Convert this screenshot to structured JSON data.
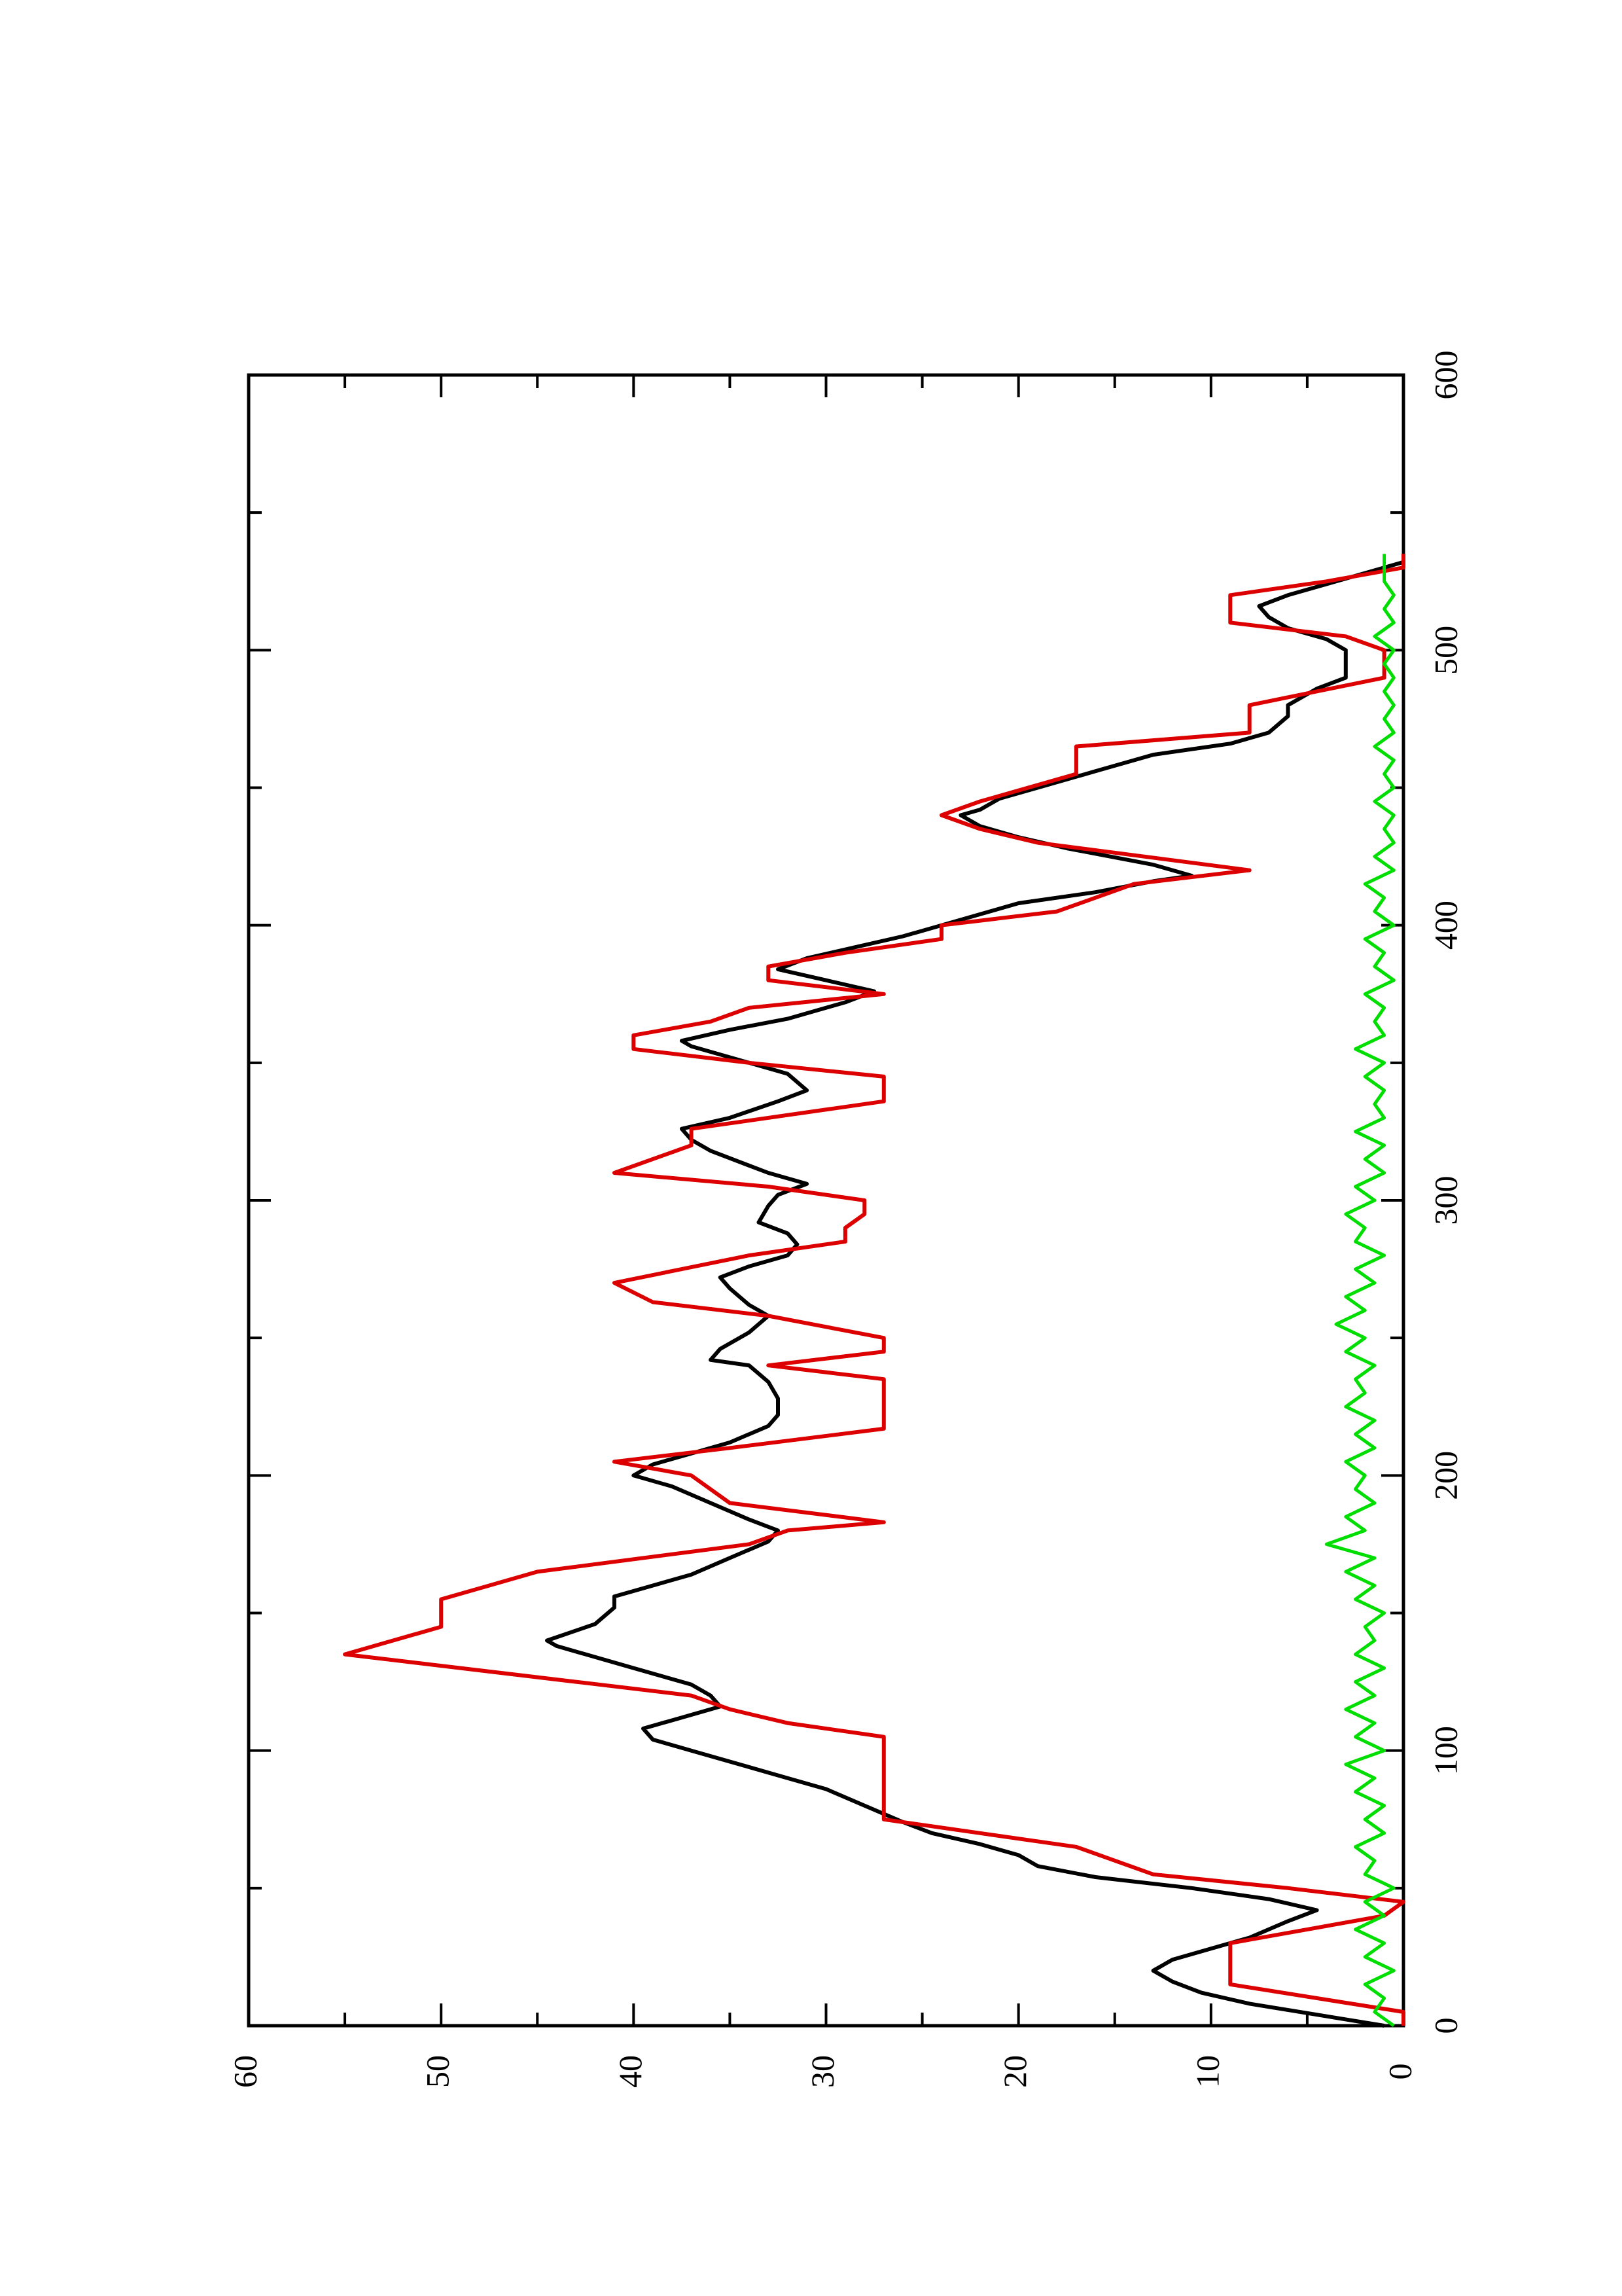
{
  "chart_data": {
    "type": "line",
    "title": "",
    "xlabel": "",
    "ylabel": "",
    "orientation": "rotated-90-ccw",
    "xlim": [
      0,
      600
    ],
    "ylim": [
      0,
      60
    ],
    "x_ticks": [
      0,
      100,
      200,
      300,
      400,
      500,
      600
    ],
    "y_ticks": [
      0,
      10,
      20,
      30,
      40,
      50,
      60
    ],
    "x_tick_labels": [
      "0",
      "100",
      "200",
      "300",
      "400",
      "500",
      "600"
    ],
    "y_tick_labels": [
      "0",
      "10",
      "20",
      "30",
      "40",
      "50",
      "60"
    ],
    "grid": false,
    "legend": "none",
    "series": [
      {
        "color": "#000000",
        "style": "smooth",
        "points": [
          [
            0,
            1
          ],
          [
            8,
            8
          ],
          [
            12,
            10.5
          ],
          [
            16,
            12
          ],
          [
            20,
            13
          ],
          [
            24,
            12
          ],
          [
            28,
            10
          ],
          [
            32,
            8
          ],
          [
            38,
            6
          ],
          [
            42,
            4.5
          ],
          [
            46,
            7
          ],
          [
            50,
            11
          ],
          [
            54,
            16
          ],
          [
            58,
            19
          ],
          [
            62,
            20
          ],
          [
            66,
            22
          ],
          [
            70,
            24.5
          ],
          [
            74,
            26
          ],
          [
            80,
            28
          ],
          [
            86,
            30
          ],
          [
            90,
            32
          ],
          [
            96,
            35
          ],
          [
            100,
            37
          ],
          [
            104,
            39
          ],
          [
            108,
            39.5
          ],
          [
            112,
            37.5
          ],
          [
            116,
            35.5
          ],
          [
            120,
            36
          ],
          [
            124,
            37
          ],
          [
            130,
            40
          ],
          [
            134,
            42
          ],
          [
            138,
            44
          ],
          [
            140,
            44.5
          ],
          [
            146,
            42
          ],
          [
            152,
            41
          ],
          [
            156,
            41
          ],
          [
            160,
            39
          ],
          [
            164,
            37
          ],
          [
            170,
            35
          ],
          [
            176,
            33
          ],
          [
            180,
            32.5
          ],
          [
            184,
            34
          ],
          [
            190,
            36
          ],
          [
            196,
            38
          ],
          [
            200,
            40
          ],
          [
            204,
            39
          ],
          [
            208,
            37
          ],
          [
            212,
            35
          ],
          [
            218,
            33
          ],
          [
            222,
            32.5
          ],
          [
            228,
            32.5
          ],
          [
            234,
            33
          ],
          [
            240,
            34
          ],
          [
            242,
            36
          ],
          [
            246,
            35.5
          ],
          [
            252,
            34
          ],
          [
            258,
            33
          ],
          [
            262,
            34
          ],
          [
            268,
            35
          ],
          [
            272,
            35.5
          ],
          [
            276,
            34
          ],
          [
            280,
            32
          ],
          [
            284,
            31.5
          ],
          [
            288,
            32
          ],
          [
            292,
            33.5
          ],
          [
            298,
            33
          ],
          [
            302,
            32.5
          ],
          [
            306,
            31
          ],
          [
            310,
            33
          ],
          [
            314,
            34.5
          ],
          [
            318,
            36
          ],
          [
            322,
            37
          ],
          [
            326,
            37.5
          ],
          [
            330,
            35
          ],
          [
            336,
            32.5
          ],
          [
            340,
            31
          ],
          [
            346,
            32
          ],
          [
            350,
            34
          ],
          [
            356,
            37
          ],
          [
            358,
            37.5
          ],
          [
            362,
            35
          ],
          [
            366,
            32
          ],
          [
            370,
            30
          ],
          [
            372,
            29
          ],
          [
            376,
            27.5
          ],
          [
            380,
            30
          ],
          [
            384,
            32.5
          ],
          [
            388,
            31
          ],
          [
            392,
            28.5
          ],
          [
            396,
            26
          ],
          [
            400,
            24
          ],
          [
            404,
            22
          ],
          [
            408,
            20
          ],
          [
            412,
            16
          ],
          [
            416,
            13
          ],
          [
            418,
            11
          ],
          [
            422,
            13
          ],
          [
            428,
            17.5
          ],
          [
            432,
            20
          ],
          [
            436,
            22
          ],
          [
            440,
            23
          ],
          [
            442,
            22
          ],
          [
            446,
            21
          ],
          [
            450,
            19
          ],
          [
            456,
            16
          ],
          [
            462,
            13
          ],
          [
            466,
            9
          ],
          [
            470,
            7
          ],
          [
            476,
            6
          ],
          [
            480,
            6
          ],
          [
            486,
            4.5
          ],
          [
            490,
            3
          ],
          [
            496,
            3
          ],
          [
            500,
            3
          ],
          [
            504,
            4
          ],
          [
            508,
            6
          ],
          [
            512,
            7
          ],
          [
            516,
            7.5
          ],
          [
            520,
            6
          ],
          [
            524,
            4
          ],
          [
            528,
            2
          ],
          [
            532,
            0
          ],
          [
            534,
            0
          ]
        ]
      },
      {
        "color": "#dd0000",
        "style": "step",
        "points": [
          [
            0,
            0
          ],
          [
            5,
            0
          ],
          [
            15,
            9
          ],
          [
            30,
            9
          ],
          [
            40,
            1
          ],
          [
            45,
            0
          ],
          [
            50,
            6
          ],
          [
            55,
            13
          ],
          [
            65,
            17
          ],
          [
            70,
            22
          ],
          [
            75,
            27
          ],
          [
            105,
            27
          ],
          [
            110,
            32
          ],
          [
            115,
            35
          ],
          [
            120,
            37
          ],
          [
            125,
            43
          ],
          [
            135,
            55
          ],
          [
            145,
            50
          ],
          [
            155,
            50
          ],
          [
            165,
            45
          ],
          [
            175,
            34
          ],
          [
            180,
            32
          ],
          [
            183,
            27
          ],
          [
            190,
            35
          ],
          [
            200,
            37
          ],
          [
            205,
            41
          ],
          [
            210,
            35
          ],
          [
            217,
            27
          ],
          [
            235,
            27
          ],
          [
            240,
            33
          ],
          [
            245,
            27
          ],
          [
            250,
            27
          ],
          [
            258,
            33
          ],
          [
            263,
            39
          ],
          [
            270,
            41
          ],
          [
            280,
            34
          ],
          [
            285,
            29
          ],
          [
            290,
            29
          ],
          [
            295,
            28
          ],
          [
            300,
            28
          ],
          [
            305,
            33
          ],
          [
            310,
            41
          ],
          [
            320,
            37
          ],
          [
            326,
            37
          ],
          [
            336,
            27
          ],
          [
            345,
            27
          ],
          [
            350,
            34
          ],
          [
            355,
            40
          ],
          [
            360,
            40
          ],
          [
            365,
            36
          ],
          [
            370,
            34
          ],
          [
            375,
            27
          ],
          [
            380,
            33
          ],
          [
            385,
            33
          ],
          [
            390,
            29
          ],
          [
            395,
            24
          ],
          [
            400,
            24
          ],
          [
            405,
            18
          ],
          [
            415,
            14
          ],
          [
            420,
            8
          ],
          [
            430,
            19
          ],
          [
            435,
            22
          ],
          [
            440,
            24
          ],
          [
            445,
            22
          ],
          [
            455,
            17
          ],
          [
            465,
            17
          ],
          [
            470,
            8
          ],
          [
            480,
            8
          ],
          [
            490,
            1
          ],
          [
            500,
            1
          ],
          [
            505,
            3
          ],
          [
            510,
            9
          ],
          [
            520,
            9
          ],
          [
            525,
            4
          ],
          [
            530,
            0
          ],
          [
            535,
            0
          ]
        ]
      },
      {
        "color": "#00dd00",
        "style": "noisy",
        "points": [
          [
            0,
            0.5
          ],
          [
            5,
            1.5
          ],
          [
            10,
            1
          ],
          [
            15,
            2
          ],
          [
            20,
            0.5
          ],
          [
            25,
            2
          ],
          [
            30,
            1
          ],
          [
            35,
            2.5
          ],
          [
            40,
            1
          ],
          [
            45,
            2
          ],
          [
            50,
            0.5
          ],
          [
            55,
            2
          ],
          [
            60,
            1.5
          ],
          [
            65,
            2.5
          ],
          [
            70,
            1
          ],
          [
            75,
            2
          ],
          [
            80,
            1
          ],
          [
            85,
            2.5
          ],
          [
            90,
            1.5
          ],
          [
            95,
            3
          ],
          [
            100,
            1
          ],
          [
            105,
            2.5
          ],
          [
            110,
            1.5
          ],
          [
            115,
            3
          ],
          [
            120,
            1.5
          ],
          [
            125,
            2.5
          ],
          [
            130,
            1
          ],
          [
            135,
            2.5
          ],
          [
            140,
            1.5
          ],
          [
            145,
            2
          ],
          [
            150,
            1
          ],
          [
            155,
            2.5
          ],
          [
            160,
            1.5
          ],
          [
            165,
            3
          ],
          [
            170,
            1.5
          ],
          [
            175,
            4
          ],
          [
            180,
            2
          ],
          [
            185,
            3
          ],
          [
            190,
            1.5
          ],
          [
            195,
            2.5
          ],
          [
            200,
            2
          ],
          [
            205,
            3
          ],
          [
            210,
            1.5
          ],
          [
            215,
            2.5
          ],
          [
            220,
            1.5
          ],
          [
            225,
            3
          ],
          [
            230,
            2
          ],
          [
            235,
            2.5
          ],
          [
            240,
            1.5
          ],
          [
            245,
            3
          ],
          [
            250,
            2
          ],
          [
            255,
            3.5
          ],
          [
            260,
            2
          ],
          [
            265,
            3
          ],
          [
            270,
            1.5
          ],
          [
            275,
            2.5
          ],
          [
            280,
            1
          ],
          [
            285,
            2.5
          ],
          [
            290,
            2
          ],
          [
            295,
            3
          ],
          [
            300,
            1.5
          ],
          [
            305,
            2.5
          ],
          [
            310,
            1
          ],
          [
            315,
            2
          ],
          [
            320,
            1
          ],
          [
            325,
            2.5
          ],
          [
            330,
            1
          ],
          [
            335,
            1.5
          ],
          [
            340,
            1
          ],
          [
            345,
            2
          ],
          [
            350,
            1
          ],
          [
            355,
            2.5
          ],
          [
            360,
            1
          ],
          [
            365,
            1.5
          ],
          [
            370,
            1
          ],
          [
            375,
            2
          ],
          [
            380,
            0.5
          ],
          [
            385,
            1.5
          ],
          [
            390,
            1
          ],
          [
            395,
            2
          ],
          [
            400,
            0.5
          ],
          [
            405,
            1.5
          ],
          [
            410,
            1
          ],
          [
            415,
            2
          ],
          [
            420,
            0.5
          ],
          [
            425,
            1.5
          ],
          [
            430,
            0.5
          ],
          [
            435,
            1
          ],
          [
            440,
            0.5
          ],
          [
            445,
            1.5
          ],
          [
            450,
            0.5
          ],
          [
            455,
            1
          ],
          [
            460,
            0.5
          ],
          [
            465,
            1.5
          ],
          [
            470,
            0.5
          ],
          [
            475,
            1
          ],
          [
            480,
            0.5
          ],
          [
            485,
            1
          ],
          [
            490,
            0.5
          ],
          [
            495,
            1
          ],
          [
            500,
            0.5
          ],
          [
            505,
            1.5
          ],
          [
            510,
            0.5
          ],
          [
            515,
            1
          ],
          [
            520,
            0.5
          ],
          [
            525,
            1
          ],
          [
            530,
            1
          ],
          [
            535,
            1
          ]
        ]
      }
    ]
  }
}
